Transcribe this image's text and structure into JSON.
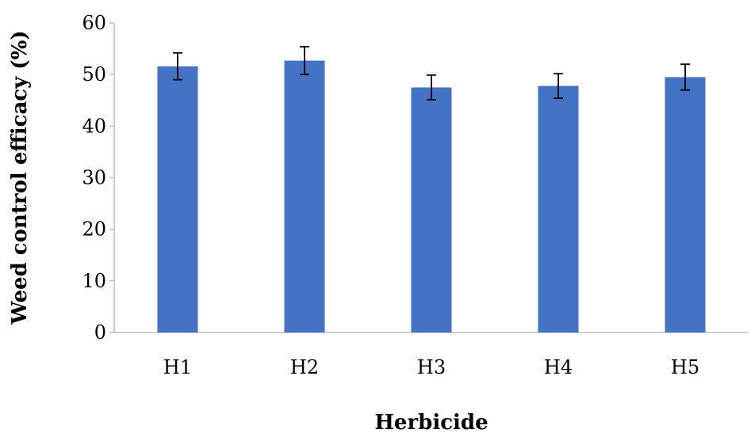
{
  "chart_data": {
    "type": "bar",
    "title": "",
    "xlabel": "Herbicide",
    "ylabel": "Weed control efficacy  (%)",
    "categories": [
      "H1",
      "H2",
      "H3",
      "H4",
      "H5"
    ],
    "series": [
      {
        "values": [
          51.6,
          52.7,
          47.5,
          47.8,
          49.5
        ],
        "error": [
          2.6,
          2.7,
          2.4,
          2.4,
          2.5
        ],
        "color": "#4472C4"
      }
    ],
    "ylim": [
      0,
      60
    ],
    "yticks": [
      0,
      10,
      20,
      30,
      40,
      50,
      60
    ],
    "grid": false,
    "legend": "none"
  }
}
